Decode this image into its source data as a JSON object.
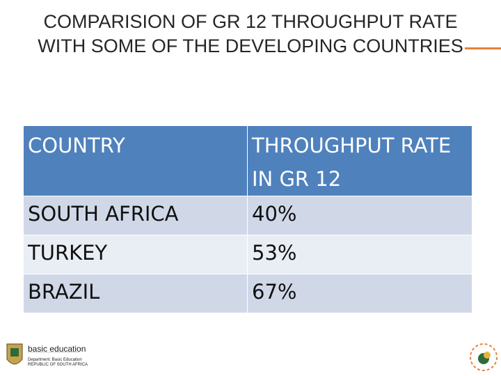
{
  "header": {
    "title": "COMPARISION OF GR 12 THROUGHPUT RATE WITH SOME OF THE DEVELOPING COUNTRIES"
  },
  "table": {
    "columns": [
      "COUNTRY",
      "THROUGHPUT RATE IN GR 12"
    ],
    "rows": [
      [
        "SOUTH AFRICA",
        "40%"
      ],
      [
        "TURKEY",
        "53%"
      ],
      [
        "BRAZIL",
        "67%"
      ]
    ]
  },
  "footer": {
    "logo_title": "basic education",
    "logo_department": "Department: Basic Education",
    "logo_country": "REPUBLIC OF SOUTH AFRICA"
  }
}
